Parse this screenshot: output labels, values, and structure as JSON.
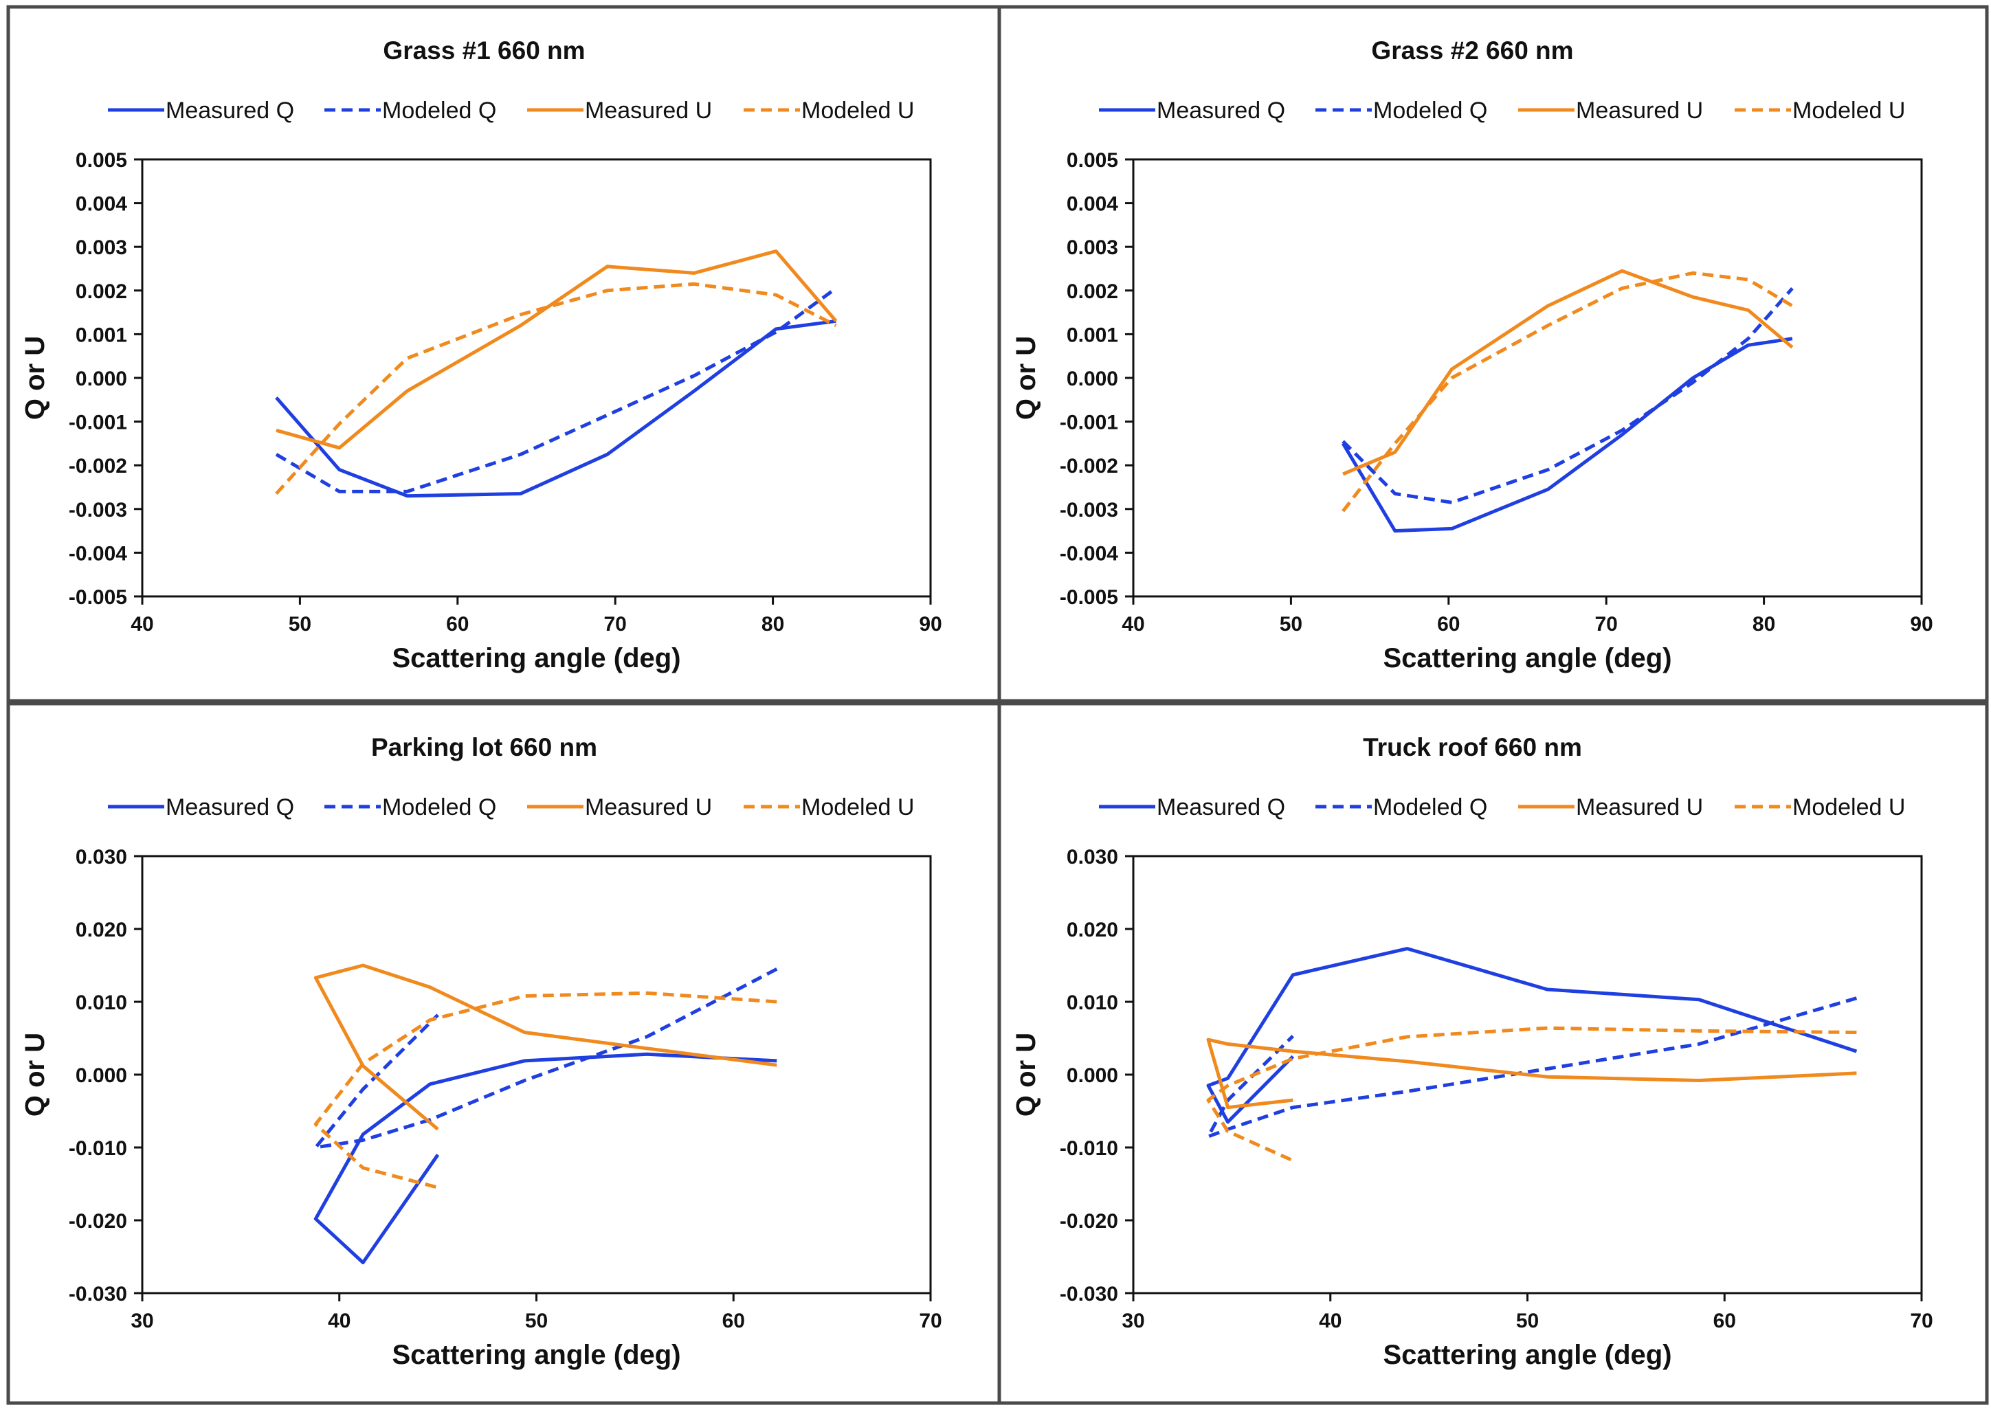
{
  "colors": {
    "blue": "#1f3fe0",
    "orange": "#f08a1e",
    "frame": "#4a4a4a"
  },
  "chart_data": [
    {
      "type": "line",
      "title": "Grass #1 660 nm",
      "xlabel": "Scattering angle (deg)",
      "ylabel": "Q or U",
      "xlim": [
        40,
        90
      ],
      "ylim": [
        -0.005,
        0.005
      ],
      "xticks": [
        40,
        50,
        60,
        70,
        80,
        90
      ],
      "xtick_labels": [
        "40",
        "50",
        "60",
        "70",
        "80",
        "90"
      ],
      "yticks": [
        -0.005,
        -0.004,
        -0.003,
        -0.002,
        -0.001,
        0,
        0.001,
        0.002,
        0.003,
        0.004,
        0.005
      ],
      "ytick_labels": [
        "-0.005",
        "-0.004",
        "-0.003",
        "-0.002",
        "-0.001",
        "0.000",
        "0.001",
        "0.002",
        "0.003",
        "0.004",
        "0.005"
      ],
      "legend": "top",
      "grid": false,
      "series": [
        {
          "name": "Measured Q",
          "color": "#1f3fe0",
          "dashed": false,
          "x": [
            48.5,
            52.5,
            56.8,
            64.0,
            69.5,
            75.0,
            80.2,
            84.0
          ],
          "y": [
            -0.00045,
            -0.0021,
            -0.0027,
            -0.00265,
            -0.00175,
            -0.0003,
            0.00112,
            0.0013
          ]
        },
        {
          "name": "Modeled Q",
          "color": "#1f3fe0",
          "dashed": true,
          "x": [
            48.5,
            52.5,
            56.8,
            64.0,
            69.5,
            75.0,
            80.2,
            84.0
          ],
          "y": [
            -0.00175,
            -0.0026,
            -0.0026,
            -0.00175,
            -0.00085,
            5e-05,
            0.00105,
            0.00205
          ]
        },
        {
          "name": "Measured U",
          "color": "#f08a1e",
          "dashed": false,
          "x": [
            48.5,
            52.5,
            56.8,
            64.0,
            69.5,
            75.0,
            80.2,
            84.0
          ],
          "y": [
            -0.0012,
            -0.0016,
            -0.0003,
            0.0012,
            0.00255,
            0.0024,
            0.0029,
            0.0013
          ]
        },
        {
          "name": "Modeled U",
          "color": "#f08a1e",
          "dashed": true,
          "x": [
            48.5,
            52.5,
            56.8,
            64.0,
            69.5,
            75.0,
            80.2,
            84.0
          ],
          "y": [
            -0.00265,
            -0.00105,
            0.00045,
            0.00145,
            0.002,
            0.00215,
            0.0019,
            0.0012
          ]
        }
      ]
    },
    {
      "type": "line",
      "title": "Grass #2 660 nm",
      "xlabel": "Scattering angle (deg)",
      "ylabel": "Q or U",
      "xlim": [
        40,
        90
      ],
      "ylim": [
        -0.005,
        0.005
      ],
      "xticks": [
        40,
        50,
        60,
        70,
        80,
        90
      ],
      "xtick_labels": [
        "40",
        "50",
        "60",
        "70",
        "80",
        "90"
      ],
      "yticks": [
        -0.005,
        -0.004,
        -0.003,
        -0.002,
        -0.001,
        0,
        0.001,
        0.002,
        0.003,
        0.004,
        0.005
      ],
      "ytick_labels": [
        "-0.005",
        "-0.004",
        "-0.003",
        "-0.002",
        "-0.001",
        "0.000",
        "0.001",
        "0.002",
        "0.003",
        "0.004",
        "0.005"
      ],
      "legend": "top",
      "grid": false,
      "series": [
        {
          "name": "Measured Q",
          "color": "#1f3fe0",
          "dashed": false,
          "x": [
            53.3,
            56.6,
            60.2,
            66.3,
            71.0,
            75.5,
            79.0,
            81.8
          ],
          "y": [
            -0.0015,
            -0.0035,
            -0.00345,
            -0.00255,
            -0.0013,
            0.0,
            0.00075,
            0.0009
          ]
        },
        {
          "name": "Modeled Q",
          "color": "#1f3fe0",
          "dashed": true,
          "x": [
            53.3,
            56.6,
            60.2,
            66.3,
            71.0,
            75.5,
            79.0,
            81.8
          ],
          "y": [
            -0.00145,
            -0.00265,
            -0.00285,
            -0.0021,
            -0.0012,
            -0.0001,
            0.0009,
            0.00205
          ]
        },
        {
          "name": "Measured U",
          "color": "#f08a1e",
          "dashed": false,
          "x": [
            53.3,
            56.6,
            60.2,
            66.3,
            71.0,
            75.5,
            79.0,
            81.8
          ],
          "y": [
            -0.0022,
            -0.0017,
            0.0002,
            0.00165,
            0.00245,
            0.00185,
            0.00155,
            0.0007
          ]
        },
        {
          "name": "Modeled U",
          "color": "#f08a1e",
          "dashed": true,
          "x": [
            53.3,
            56.6,
            60.2,
            66.3,
            71.0,
            75.5,
            79.0,
            81.8
          ],
          "y": [
            -0.00305,
            -0.0015,
            0.0,
            0.0012,
            0.00205,
            0.0024,
            0.00225,
            0.00165
          ]
        }
      ]
    },
    {
      "type": "line",
      "title": "Parking lot 660 nm",
      "xlabel": "Scattering angle (deg)",
      "ylabel": "Q or U",
      "xlim": [
        30,
        70
      ],
      "ylim": [
        -0.03,
        0.03
      ],
      "xticks": [
        30,
        40,
        50,
        60,
        70
      ],
      "xtick_labels": [
        "30",
        "40",
        "50",
        "60",
        "70"
      ],
      "yticks": [
        -0.03,
        -0.02,
        -0.01,
        0,
        0.01,
        0.02,
        0.03
      ],
      "ytick_labels": [
        "-0.030",
        "-0.020",
        "-0.010",
        "0.000",
        "0.010",
        "0.020",
        "0.030"
      ],
      "legend": "top",
      "grid": false,
      "series": [
        {
          "name": "Measured Q",
          "color": "#1f3fe0",
          "dashed": false,
          "x": [
            62.2,
            55.6,
            49.4,
            44.6,
            41.2,
            38.8,
            41.2,
            45.0
          ],
          "y": [
            0.0019,
            0.0028,
            0.0019,
            -0.0013,
            -0.0082,
            -0.0198,
            -0.0258,
            -0.011
          ]
        },
        {
          "name": "Modeled Q",
          "color": "#1f3fe0",
          "dashed": true,
          "x": [
            62.2,
            55.6,
            49.4,
            44.6,
            41.2,
            38.8,
            41.2,
            45.0
          ],
          "y": [
            0.0145,
            0.0052,
            -0.0008,
            -0.0062,
            -0.009,
            -0.01,
            -0.002,
            0.0082
          ]
        },
        {
          "name": "Measured U",
          "color": "#f08a1e",
          "dashed": false,
          "x": [
            62.2,
            55.6,
            49.4,
            44.6,
            41.2,
            38.8,
            41.2,
            45.0
          ],
          "y": [
            0.0013,
            0.0036,
            0.0058,
            0.012,
            0.015,
            0.0133,
            0.0012,
            -0.0075
          ]
        },
        {
          "name": "Modeled U",
          "color": "#f08a1e",
          "dashed": true,
          "x": [
            62.2,
            55.6,
            49.4,
            44.6,
            41.2,
            38.8,
            41.2,
            45.0
          ],
          "y": [
            0.01,
            0.0112,
            0.0108,
            0.0075,
            0.0015,
            -0.0068,
            -0.0128,
            -0.0155
          ]
        }
      ]
    },
    {
      "type": "line",
      "title": "Truck roof 660 nm",
      "xlabel": "Scattering angle (deg)",
      "ylabel": "Q or U",
      "xlim": [
        30,
        70
      ],
      "ylim": [
        -0.03,
        0.03
      ],
      "xticks": [
        30,
        40,
        50,
        60,
        70
      ],
      "xtick_labels": [
        "30",
        "40",
        "50",
        "60",
        "70"
      ],
      "yticks": [
        -0.03,
        -0.02,
        -0.01,
        0,
        0.01,
        0.02,
        0.03
      ],
      "ytick_labels": [
        "-0.030",
        "-0.020",
        "-0.010",
        "0.000",
        "0.010",
        "0.020",
        "0.030"
      ],
      "legend": "top",
      "grid": false,
      "series": [
        {
          "name": "Measured Q",
          "color": "#1f3fe0",
          "dashed": false,
          "x": [
            66.7,
            58.7,
            51.0,
            43.9,
            38.1,
            34.8,
            33.8,
            34.8,
            38.1
          ],
          "y": [
            0.0032,
            0.0103,
            0.0117,
            0.0173,
            0.0137,
            -0.0005,
            -0.0015,
            -0.0065,
            0.0025
          ]
        },
        {
          "name": "Modeled Q",
          "color": "#1f3fe0",
          "dashed": true,
          "x": [
            66.7,
            58.7,
            51.0,
            43.9,
            38.1,
            34.8,
            33.8,
            34.8,
            38.1
          ],
          "y": [
            0.0105,
            0.0042,
            0.0008,
            -0.0023,
            -0.0045,
            -0.0075,
            -0.0085,
            -0.0035,
            0.0053
          ]
        },
        {
          "name": "Measured U",
          "color": "#f08a1e",
          "dashed": false,
          "x": [
            66.7,
            58.7,
            51.0,
            43.9,
            38.1,
            34.8,
            33.8,
            34.8,
            38.1
          ],
          "y": [
            0.0002,
            -0.0008,
            -0.0003,
            0.0018,
            0.0032,
            0.0042,
            0.0048,
            -0.0045,
            -0.0035
          ]
        },
        {
          "name": "Modeled U",
          "color": "#f08a1e",
          "dashed": true,
          "x": [
            66.7,
            58.7,
            51.0,
            43.9,
            38.1,
            34.8,
            33.8,
            34.8,
            38.1
          ],
          "y": [
            0.0058,
            0.006,
            0.0064,
            0.0052,
            0.0022,
            -0.0015,
            -0.0035,
            -0.0078,
            -0.0118
          ]
        }
      ]
    }
  ]
}
